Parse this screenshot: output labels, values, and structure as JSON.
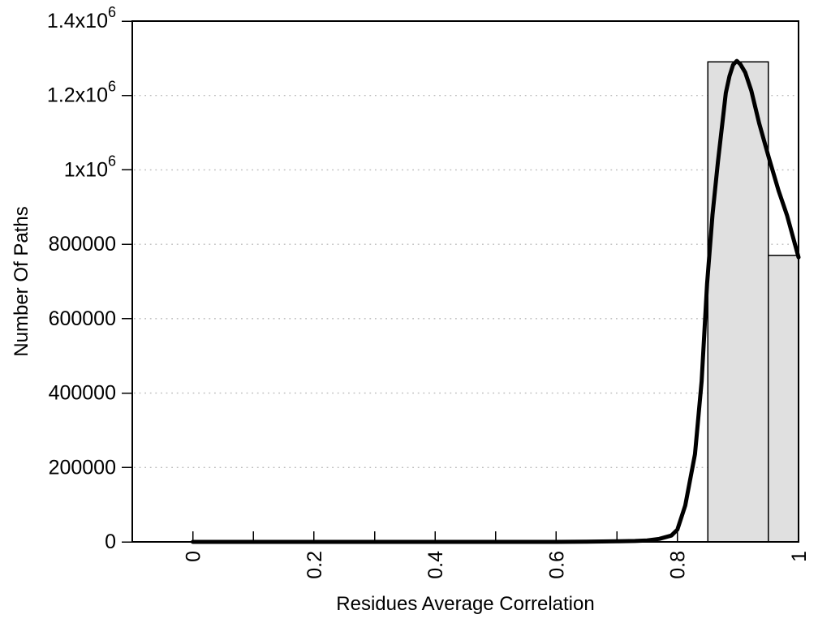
{
  "figure": {
    "background": "#ffffff"
  },
  "chart_data": {
    "type": "bar",
    "subtype": "histogram_with_smoothed_line",
    "title": "",
    "xlabel": "Residues Average Correlation",
    "ylabel": "Number Of Paths",
    "xlim": [
      -0.1,
      1.0
    ],
    "ylim": [
      0,
      1400000
    ],
    "grid": {
      "horizontal": "dotted",
      "vertical": false
    },
    "legend": "none",
    "x_ticks": [
      {
        "v": 0.0,
        "label": "0"
      },
      {
        "v": 0.1,
        "label": ""
      },
      {
        "v": 0.2,
        "label": "0.2"
      },
      {
        "v": 0.3,
        "label": ""
      },
      {
        "v": 0.4,
        "label": "0.4"
      },
      {
        "v": 0.5,
        "label": ""
      },
      {
        "v": 0.6,
        "label": "0.6"
      },
      {
        "v": 0.7,
        "label": ""
      },
      {
        "v": 0.8,
        "label": "0.8"
      },
      {
        "v": 0.9,
        "label": ""
      },
      {
        "v": 1.0,
        "label": "1"
      }
    ],
    "y_ticks": [
      {
        "v": 0,
        "label": "0"
      },
      {
        "v": 200000,
        "label": "200000"
      },
      {
        "v": 400000,
        "label": "400000"
      },
      {
        "v": 600000,
        "label": "600000"
      },
      {
        "v": 800000,
        "label": "800000"
      },
      {
        "v": 1000000,
        "label": "1x10^6"
      },
      {
        "v": 1200000,
        "label": "1.2x10^6"
      },
      {
        "v": 1400000,
        "label": "1.4x10^6"
      }
    ],
    "bars": [
      {
        "x_start": 0.85,
        "x_end": 0.95,
        "value": 1290000
      },
      {
        "x_start": 0.95,
        "x_end": 1.0,
        "value": 770000
      }
    ],
    "line_series": {
      "name": "smoothed-path-count-curve",
      "points": [
        [
          0.0,
          0
        ],
        [
          0.1,
          0
        ],
        [
          0.2,
          0
        ],
        [
          0.3,
          0
        ],
        [
          0.4,
          0
        ],
        [
          0.5,
          0
        ],
        [
          0.6,
          0
        ],
        [
          0.65,
          500
        ],
        [
          0.7,
          1500
        ],
        [
          0.73,
          2500
        ],
        [
          0.75,
          4000
        ],
        [
          0.77,
          8000
        ],
        [
          0.79,
          17000
        ],
        [
          0.8,
          33000
        ],
        [
          0.813,
          98000
        ],
        [
          0.829,
          236000
        ],
        [
          0.84,
          432000
        ],
        [
          0.849,
          694000
        ],
        [
          0.858,
          880000
        ],
        [
          0.867,
          1022000
        ],
        [
          0.88,
          1207000
        ],
        [
          0.886,
          1252000
        ],
        [
          0.892,
          1283000
        ],
        [
          0.898,
          1293000
        ],
        [
          0.904,
          1284000
        ],
        [
          0.912,
          1262000
        ],
        [
          0.922,
          1213000
        ],
        [
          0.935,
          1125000
        ],
        [
          0.951,
          1033000
        ],
        [
          0.967,
          944000
        ],
        [
          0.981,
          878000
        ],
        [
          1.0,
          765000
        ]
      ]
    },
    "colors": {
      "bar_fill": "#e0e0e0",
      "bar_border": "#000000",
      "line": "#000000",
      "axis": "#000000",
      "grid": "#bbbbbb",
      "text": "#000000"
    }
  }
}
